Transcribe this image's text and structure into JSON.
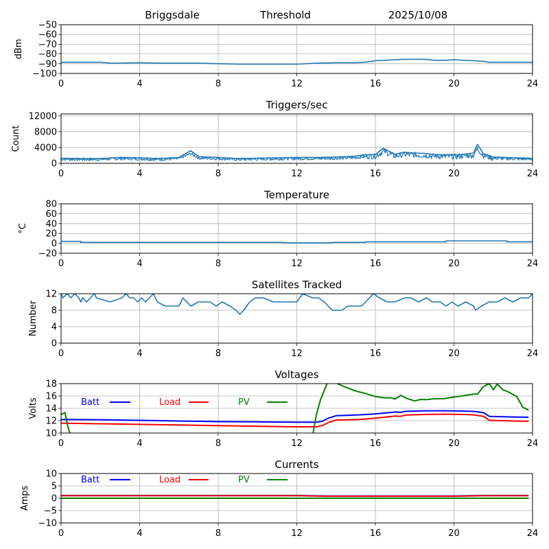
{
  "header": {
    "station": "Briggsdale",
    "mode": "Threshold",
    "date": "2025/10/08"
  },
  "chart_data": [
    {
      "id": "threshold",
      "type": "line",
      "title": "",
      "xlabel": "",
      "ylabel": "dBm",
      "xlim": [
        0,
        24
      ],
      "ylim": [
        -100,
        -50
      ],
      "xticks": [
        0,
        4,
        8,
        12,
        16,
        20,
        24
      ],
      "xtick_labels": [
        "0",
        "4",
        "8",
        "12",
        "16",
        "20",
        "24"
      ],
      "yticks": [
        -100,
        -90,
        -80,
        -70,
        -60,
        -50
      ],
      "ytick_labels": [
        "−100",
        "−90",
        "−80",
        "−70",
        "−60",
        "−50"
      ],
      "grid": true,
      "series": [
        {
          "name": "Threshold",
          "color": "#1f77b4",
          "x": [
            0,
            1,
            2,
            2.5,
            3,
            4,
            5,
            6,
            7,
            8,
            9,
            10,
            11,
            12,
            13,
            14,
            15,
            15.5,
            16,
            16.5,
            17,
            17.5,
            18,
            18.5,
            19,
            19.5,
            20,
            20.5,
            21,
            21.5,
            21.8,
            22,
            23,
            24
          ],
          "y": [
            -88.5,
            -88.5,
            -88.5,
            -89.5,
            -89.5,
            -89,
            -89.5,
            -89.5,
            -89.5,
            -90,
            -90.5,
            -90.5,
            -90.5,
            -90.5,
            -89.5,
            -89,
            -89,
            -88.5,
            -87,
            -86.5,
            -86,
            -85.5,
            -85.5,
            -85.5,
            -86.5,
            -86.5,
            -86,
            -86.5,
            -87,
            -87.5,
            -88.5,
            -88.5,
            -88.5,
            -88.5
          ]
        }
      ]
    },
    {
      "id": "triggers",
      "type": "line",
      "title": "Triggers/sec",
      "xlabel": "",
      "ylabel": "Count",
      "xlim": [
        0,
        24
      ],
      "ylim": [
        0,
        12500
      ],
      "xticks": [
        0,
        4,
        8,
        12,
        16,
        20,
        24
      ],
      "xtick_labels": [
        "0",
        "4",
        "8",
        "12",
        "16",
        "20",
        "24"
      ],
      "yticks": [
        0,
        4000,
        8000,
        12000
      ],
      "ytick_labels": [
        "0",
        "4000",
        "8000",
        "12000"
      ],
      "grid": true,
      "series": [
        {
          "name": "Triggers",
          "color": "#1f77b4",
          "x": [
            0,
            1,
            2,
            3,
            4,
            5,
            6,
            6.6,
            7,
            8,
            9,
            10,
            11,
            12,
            13,
            14,
            15,
            15.5,
            16,
            16.4,
            17,
            17.5,
            18,
            18.5,
            19,
            20,
            20.5,
            21,
            21.2,
            21.5,
            22,
            23,
            24
          ],
          "y": [
            1300,
            1200,
            1200,
            1500,
            1400,
            1200,
            1500,
            3200,
            1700,
            1500,
            1200,
            1300,
            1400,
            1500,
            1500,
            1600,
            1800,
            2200,
            2200,
            3800,
            2300,
            2800,
            2600,
            2500,
            2200,
            2100,
            2300,
            2600,
            4800,
            2400,
            1600,
            1400,
            1300
          ]
        }
      ]
    },
    {
      "id": "temperature",
      "type": "line",
      "title": "Temperature",
      "xlabel": "",
      "ylabel": "°C",
      "xlim": [
        0,
        24
      ],
      "ylim": [
        -20,
        80
      ],
      "xticks": [
        0,
        4,
        8,
        12,
        16,
        20,
        24
      ],
      "xtick_labels": [
        "0",
        "4",
        "8",
        "12",
        "16",
        "20",
        "24"
      ],
      "yticks": [
        -20,
        0,
        20,
        40,
        60,
        80
      ],
      "ytick_labels": [
        "−20",
        "0",
        "20",
        "40",
        "60",
        "80"
      ],
      "grid": true,
      "series": [
        {
          "name": "Temperature",
          "color": "#1f77b4",
          "x": [
            0,
            1,
            1,
            11.3,
            11.3,
            13.8,
            13.8,
            15.5,
            15.5,
            19.6,
            19.6,
            22.7,
            22.7,
            24
          ],
          "y": [
            4,
            4,
            2,
            2,
            1,
            1,
            2,
            2,
            3,
            3,
            5,
            5,
            3,
            3
          ]
        }
      ]
    },
    {
      "id": "satellites",
      "type": "line",
      "title": "Satellites Tracked",
      "xlabel": "",
      "ylabel": "Number",
      "xlim": [
        0,
        24
      ],
      "ylim": [
        0,
        12
      ],
      "xticks": [
        0,
        4,
        8,
        12,
        16,
        20,
        24
      ],
      "xtick_labels": [
        "0",
        "4",
        "8",
        "12",
        "16",
        "20",
        "24"
      ],
      "yticks": [
        0,
        4,
        8,
        12
      ],
      "ytick_labels": [
        "0",
        "4",
        "8",
        "12"
      ],
      "grid": true,
      "series": [
        {
          "name": "Satellites",
          "color": "#1f77b4",
          "x": [
            0,
            0.1,
            0.3,
            0.5,
            0.7,
            0.9,
            1.0,
            1.1,
            1.3,
            1.5,
            1.7,
            1.8,
            2.5,
            3.1,
            3.3,
            3.5,
            3.7,
            3.9,
            4.1,
            4.3,
            4.5,
            4.7,
            4.9,
            5.3,
            5.6,
            6.0,
            6.2,
            6.6,
            7.0,
            7.3,
            7.6,
            7.9,
            8.2,
            8.6,
            8.9,
            9.1,
            9.3,
            9.6,
            9.9,
            10.3,
            10.8,
            11.2,
            11.6,
            12.0,
            12.3,
            12.8,
            13.1,
            13.4,
            13.8,
            14.3,
            14.6,
            14.9,
            15.3,
            15.7,
            15.9,
            16.2,
            16.6,
            17.0,
            17.5,
            17.8,
            18.2,
            18.6,
            18.9,
            19.3,
            19.6,
            19.9,
            20.2,
            20.6,
            21.0,
            21.1,
            21.4,
            21.8,
            22.2,
            22.6,
            23.0,
            23.4,
            23.8,
            24
          ],
          "y": [
            12,
            11,
            12,
            11,
            12,
            11,
            10,
            11,
            10,
            11,
            12,
            11,
            10,
            11,
            12,
            11,
            11,
            10,
            11,
            10,
            11,
            12,
            10,
            9,
            9,
            9,
            11,
            9,
            10,
            10,
            10,
            9,
            10,
            9,
            8,
            7,
            8,
            10,
            11,
            11,
            10,
            10,
            10,
            10,
            12,
            11,
            11,
            10,
            8,
            8,
            9,
            9,
            9,
            11,
            12,
            11,
            10,
            10,
            11,
            11,
            10,
            11,
            10,
            10,
            9,
            10,
            9,
            10,
            9,
            8,
            9,
            10,
            10,
            11,
            10,
            11,
            11,
            12
          ]
        }
      ]
    },
    {
      "id": "voltages",
      "type": "line",
      "title": "Voltages",
      "xlabel": "",
      "ylabel": "Volts",
      "xlim": [
        0,
        24
      ],
      "ylim": [
        10,
        18
      ],
      "xticks": [
        0,
        4,
        8,
        12,
        16,
        20,
        24
      ],
      "xtick_labels": [
        "0",
        "4",
        "8",
        "12",
        "16",
        "20",
        "24"
      ],
      "yticks": [
        10,
        12,
        14,
        16,
        18
      ],
      "ytick_labels": [
        "10",
        "12",
        "14",
        "16",
        "18"
      ],
      "grid": true,
      "legend": "top-left inline",
      "series": [
        {
          "name": "Batt",
          "color": "#0000ff",
          "x": [
            0,
            2,
            4,
            6,
            8,
            10,
            12,
            13,
            13.3,
            13.6,
            14,
            15.2,
            16,
            17,
            17.3,
            17.5,
            18.5,
            19.5,
            20.5,
            21,
            21.5,
            21.8,
            23,
            23.8
          ],
          "y": [
            12.2,
            12.15,
            12.05,
            11.95,
            11.85,
            11.8,
            11.75,
            11.75,
            11.9,
            12.4,
            12.8,
            12.95,
            13.1,
            13.4,
            13.35,
            13.5,
            13.6,
            13.6,
            13.55,
            13.5,
            13.3,
            12.7,
            12.6,
            12.55
          ]
        },
        {
          "name": "Load",
          "color": "#ff0000",
          "x": [
            0,
            2,
            4,
            6,
            8,
            10,
            12,
            13,
            13.3,
            13.6,
            14,
            15.2,
            16,
            17,
            17.3,
            17.5,
            18.5,
            19.5,
            20.5,
            21,
            21.5,
            21.8,
            23,
            23.8
          ],
          "y": [
            11.6,
            11.5,
            11.4,
            11.3,
            11.2,
            11.1,
            11.0,
            11.0,
            11.2,
            11.7,
            12.1,
            12.2,
            12.4,
            12.75,
            12.7,
            12.9,
            13.0,
            13.05,
            13.0,
            12.95,
            12.7,
            12.05,
            11.95,
            11.9
          ]
        },
        {
          "name": "PV",
          "color": "#008000",
          "x": [
            0,
            0.2,
            0.35,
            0.5,
            12.8,
            13.0,
            13.2,
            13.6,
            14.0,
            14.5,
            15.0,
            15.5,
            16.0,
            16.5,
            16.8,
            17.0,
            17.3,
            17.6,
            18.0,
            18.3,
            18.6,
            19.0,
            19.5,
            19.8,
            20.2,
            20.6,
            21.0,
            21.2,
            21.5,
            21.8,
            22.0,
            22.2,
            22.5,
            22.8,
            23.2,
            23.5,
            23.8
          ],
          "y": [
            13.0,
            13.3,
            11.0,
            9.5,
            9.5,
            13.0,
            15.3,
            18.5,
            18.1,
            17.4,
            16.8,
            16.4,
            15.9,
            15.7,
            15.7,
            15.5,
            16.1,
            15.6,
            15.2,
            15.45,
            15.4,
            15.55,
            15.55,
            15.75,
            15.9,
            16.1,
            16.3,
            16.3,
            17.5,
            18.0,
            17.0,
            17.9,
            17.0,
            16.6,
            15.9,
            14.2,
            13.7
          ]
        }
      ]
    },
    {
      "id": "currents",
      "type": "line",
      "title": "Currents",
      "xlabel": "",
      "ylabel": "Amps",
      "xlim": [
        0,
        24
      ],
      "ylim": [
        -10,
        10
      ],
      "xticks": [
        0,
        4,
        8,
        12,
        16,
        20,
        24
      ],
      "xtick_labels": [
        "0",
        "4",
        "8",
        "12",
        "16",
        "20",
        "24"
      ],
      "yticks": [
        -10,
        -5,
        0,
        5,
        10
      ],
      "ytick_labels": [
        "−10",
        "−5",
        "0",
        "5",
        "10"
      ],
      "grid": true,
      "legend": "top-left inline",
      "series": [
        {
          "name": "Batt",
          "color": "#0000ff",
          "x": [
            0,
            12,
            13.5,
            20,
            21.5,
            23.8
          ],
          "y": [
            1.1,
            1.1,
            0.9,
            0.9,
            1.1,
            1.1
          ]
        },
        {
          "name": "Load",
          "color": "#ff0000",
          "x": [
            0,
            12,
            13.5,
            20,
            21.5,
            23.8
          ],
          "y": [
            1.0,
            1.0,
            0.8,
            0.8,
            1.0,
            1.0
          ]
        },
        {
          "name": "PV",
          "color": "#008000",
          "x": [
            0,
            23.8
          ],
          "y": [
            0.0,
            0.0
          ]
        }
      ]
    }
  ]
}
